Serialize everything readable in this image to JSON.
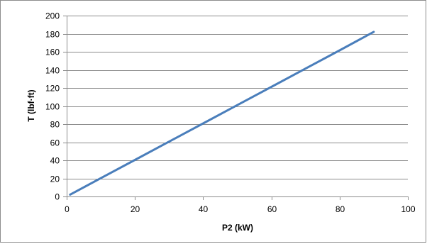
{
  "chart_data": {
    "type": "line",
    "title": "",
    "xlabel": "P2 (kW)",
    "ylabel": "T (lbf·ft)",
    "xlim": [
      0,
      100
    ],
    "ylim": [
      0,
      200
    ],
    "x_ticks": [
      0,
      20,
      40,
      60,
      80,
      100
    ],
    "y_ticks": [
      0,
      20,
      40,
      60,
      80,
      100,
      120,
      140,
      160,
      180,
      200
    ],
    "grid": {
      "horizontal": true,
      "vertical": false
    },
    "legend": "none",
    "series": [
      {
        "color": "#4a7ebb",
        "x": [
          1,
          10,
          20,
          30,
          40,
          50,
          60,
          70,
          80,
          90
        ],
        "y": [
          2,
          20.2,
          40.4,
          60.6,
          80.8,
          101,
          121.2,
          141.4,
          161.6,
          182
        ]
      }
    ]
  }
}
